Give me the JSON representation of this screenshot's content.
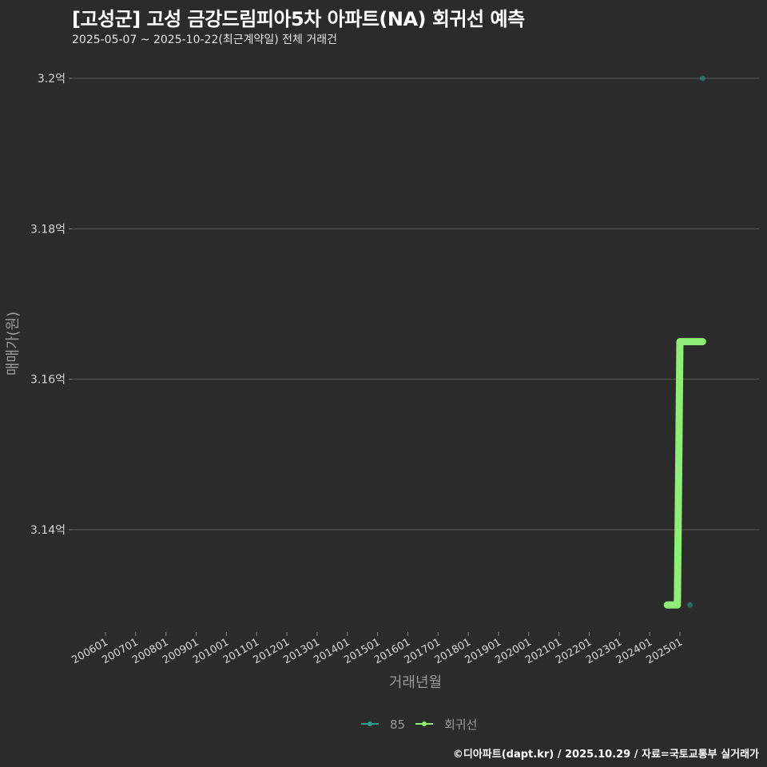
{
  "header": {
    "title": "[고성군] 고성 금강드림피아5차 아파트(NA) 회귀선 예측",
    "subtitle": "2025-05-07 ~ 2025-10-22(최근계약일) 전체 거래건"
  },
  "footer": {
    "credit": "©디아파트(dapt.kr) / 2025.10.29 / 자료=국토교통부 실거래가"
  },
  "colors": {
    "background": "#2b2b2b",
    "grid": "#5a5a5a",
    "series_85": "#2a9d8f",
    "regression": "#90ee78",
    "axis_text": "#d9d9d9"
  },
  "chart_data": {
    "type": "line",
    "title": "[고성군] 고성 금강드림피아5차 아파트(NA) 회귀선 예측",
    "subtitle": "2025-05-07 ~ 2025-10-22(최근계약일) 전체 거래건",
    "xlabel": "거래년월",
    "ylabel": "매매가(원)",
    "x_ticks": [
      "200601",
      "200701",
      "200801",
      "200901",
      "201001",
      "201101",
      "201201",
      "201301",
      "201401",
      "201501",
      "201601",
      "201701",
      "201801",
      "201901",
      "202001",
      "202101",
      "202201",
      "202301",
      "202401",
      "202501"
    ],
    "y_ticks": [
      "3.14억",
      "3.16억",
      "3.18억",
      "3.2억"
    ],
    "y_tick_values": [
      3.14,
      3.16,
      3.18,
      3.2
    ],
    "ylim": [
      3.125,
      3.205
    ],
    "grid": true,
    "legend_position": "bottom",
    "series": [
      {
        "name": "85",
        "kind": "scatter",
        "points": [
          {
            "x": "2025-05",
            "y": 3.13
          },
          {
            "x": "2025-10",
            "y": 3.2
          }
        ]
      },
      {
        "name": "회귀선",
        "kind": "line",
        "points": [
          {
            "x": "2024-08",
            "y": 3.13
          },
          {
            "x": "2024-12",
            "y": 3.13
          },
          {
            "x": "2025-01",
            "y": 3.165
          },
          {
            "x": "2025-10",
            "y": 3.165
          }
        ]
      }
    ]
  },
  "legend": {
    "items": [
      {
        "label": "85"
      },
      {
        "label": "회귀선"
      }
    ]
  }
}
